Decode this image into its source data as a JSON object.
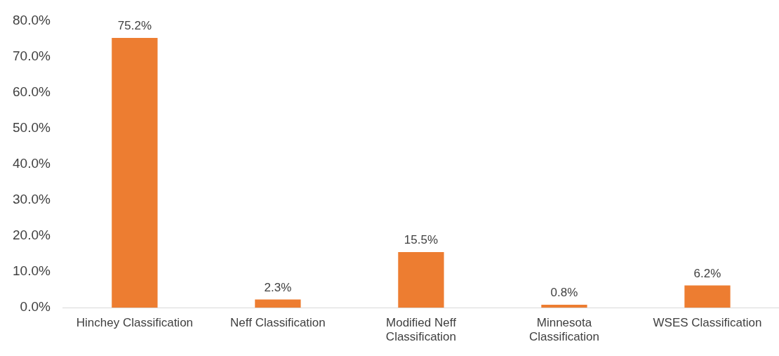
{
  "chart_data": {
    "type": "bar",
    "categories": [
      "Hinchey Classification",
      "Neff Classification",
      "Modified Neff Classification",
      "Minnesota Classification",
      "WSES Classification"
    ],
    "values": [
      75.2,
      2.3,
      15.5,
      0.8,
      6.2
    ],
    "color": "#ed7d31",
    "value_labels": [
      "75.2%",
      "2.3%",
      "15.5%",
      "0.8%",
      "6.2%"
    ],
    "ylim": [
      0,
      80
    ],
    "yticks": [
      {
        "value": 0,
        "label": "0.0%"
      },
      {
        "value": 10,
        "label": "10.0%"
      },
      {
        "value": 20,
        "label": "20.0%"
      },
      {
        "value": 30,
        "label": "30.0%"
      },
      {
        "value": 40,
        "label": "40.0%"
      },
      {
        "value": 50,
        "label": "50.0%"
      },
      {
        "value": 60,
        "label": "60.0%"
      },
      {
        "value": 70,
        "label": "70.0%"
      },
      {
        "value": 80,
        "label": "80.0%"
      }
    ],
    "grid": false,
    "legend": false
  }
}
